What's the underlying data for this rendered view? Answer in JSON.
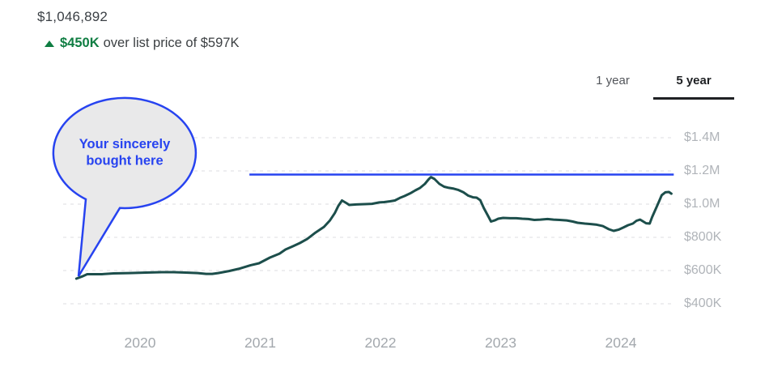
{
  "header": {
    "current_value": "$1,046,892",
    "arrow_icon": "up-triangle",
    "delta": "$450K",
    "delta_suffix": "over list price of $597K"
  },
  "tabs": [
    {
      "label": "1 year",
      "active": false
    },
    {
      "label": "5 year",
      "active": true
    }
  ],
  "annotation": {
    "line1": "Your sincerely",
    "line2": "bought here"
  },
  "colors": {
    "accent_blue": "#2743f0",
    "line_teal": "#1c4e4b",
    "delta_green": "#0f7d42",
    "gridline_gray": "#e3e4e6",
    "axis_label_gray": "#b0b4b9"
  },
  "chart_data": {
    "type": "line",
    "title": "",
    "xlabel": "",
    "ylabel": "",
    "unit": "USD thousands",
    "grid": "dashed horizontal",
    "legend": "none",
    "x_range": [
      2019.45,
      2024.45
    ],
    "y_tick_labels": [
      "$1.4M",
      "$1.2M",
      "$1.0M",
      "$800K",
      "$600K",
      "$400K"
    ],
    "y_tick_values": [
      1400,
      1200,
      1000,
      800,
      600,
      400
    ],
    "x_tick_labels": [
      "2020",
      "2021",
      "2022",
      "2023",
      "2024"
    ],
    "x_tick_values": [
      2020,
      2021,
      2022,
      2023,
      2024
    ],
    "series": [
      {
        "name": "estimated-home-value",
        "color": "#1c4e4b",
        "points": [
          [
            2019.47,
            551
          ],
          [
            2019.52,
            565
          ],
          [
            2019.56,
            578
          ],
          [
            2019.68,
            578
          ],
          [
            2019.78,
            583
          ],
          [
            2019.91,
            585
          ],
          [
            2020.05,
            588
          ],
          [
            2020.18,
            590
          ],
          [
            2020.28,
            590
          ],
          [
            2020.38,
            588
          ],
          [
            2020.48,
            585
          ],
          [
            2020.55,
            580
          ],
          [
            2020.6,
            580
          ],
          [
            2020.65,
            585
          ],
          [
            2020.74,
            597
          ],
          [
            2020.82,
            610
          ],
          [
            2020.92,
            632
          ],
          [
            2020.99,
            644
          ],
          [
            2021.08,
            678
          ],
          [
            2021.16,
            702
          ],
          [
            2021.21,
            727
          ],
          [
            2021.27,
            746
          ],
          [
            2021.33,
            766
          ],
          [
            2021.39,
            790
          ],
          [
            2021.46,
            829
          ],
          [
            2021.53,
            863
          ],
          [
            2021.58,
            902
          ],
          [
            2021.62,
            946
          ],
          [
            2021.65,
            990
          ],
          [
            2021.68,
            1022
          ],
          [
            2021.72,
            1005
          ],
          [
            2021.74,
            995
          ],
          [
            2021.8,
            998
          ],
          [
            2021.87,
            1000
          ],
          [
            2021.93,
            1002
          ],
          [
            2021.99,
            1010
          ],
          [
            2022.03,
            1012
          ],
          [
            2022.08,
            1017
          ],
          [
            2022.12,
            1022
          ],
          [
            2022.16,
            1037
          ],
          [
            2022.2,
            1049
          ],
          [
            2022.25,
            1066
          ],
          [
            2022.29,
            1083
          ],
          [
            2022.33,
            1098
          ],
          [
            2022.37,
            1122
          ],
          [
            2022.4,
            1149
          ],
          [
            2022.42,
            1163
          ],
          [
            2022.45,
            1151
          ],
          [
            2022.49,
            1122
          ],
          [
            2022.53,
            1105
          ],
          [
            2022.57,
            1098
          ],
          [
            2022.61,
            1093
          ],
          [
            2022.65,
            1085
          ],
          [
            2022.69,
            1071
          ],
          [
            2022.73,
            1051
          ],
          [
            2022.77,
            1041
          ],
          [
            2022.8,
            1039
          ],
          [
            2022.83,
            1024
          ],
          [
            2022.86,
            976
          ],
          [
            2022.9,
            922
          ],
          [
            2022.92,
            895
          ],
          [
            2022.95,
            902
          ],
          [
            2022.98,
            912
          ],
          [
            2023.02,
            917
          ],
          [
            2023.08,
            915
          ],
          [
            2023.13,
            915
          ],
          [
            2023.18,
            912
          ],
          [
            2023.23,
            910
          ],
          [
            2023.28,
            905
          ],
          [
            2023.33,
            907
          ],
          [
            2023.39,
            910
          ],
          [
            2023.44,
            907
          ],
          [
            2023.49,
            905
          ],
          [
            2023.55,
            902
          ],
          [
            2023.6,
            895
          ],
          [
            2023.64,
            888
          ],
          [
            2023.7,
            883
          ],
          [
            2023.75,
            880
          ],
          [
            2023.8,
            876
          ],
          [
            2023.85,
            868
          ],
          [
            2023.9,
            849
          ],
          [
            2023.94,
            839
          ],
          [
            2023.98,
            846
          ],
          [
            2024.02,
            859
          ],
          [
            2024.06,
            873
          ],
          [
            2024.1,
            883
          ],
          [
            2024.13,
            900
          ],
          [
            2024.16,
            907
          ],
          [
            2024.18,
            898
          ],
          [
            2024.21,
            885
          ],
          [
            2024.24,
            883
          ],
          [
            2024.26,
            922
          ],
          [
            2024.29,
            971
          ],
          [
            2024.32,
            1020
          ],
          [
            2024.34,
            1054
          ],
          [
            2024.37,
            1071
          ],
          [
            2024.4,
            1073
          ],
          [
            2024.42,
            1063
          ]
        ]
      }
    ],
    "reference_line": {
      "name": "blue-reference-line",
      "color": "#2743f0",
      "value": 1178,
      "x_start": 2020.91,
      "x_end": 2024.44
    }
  }
}
